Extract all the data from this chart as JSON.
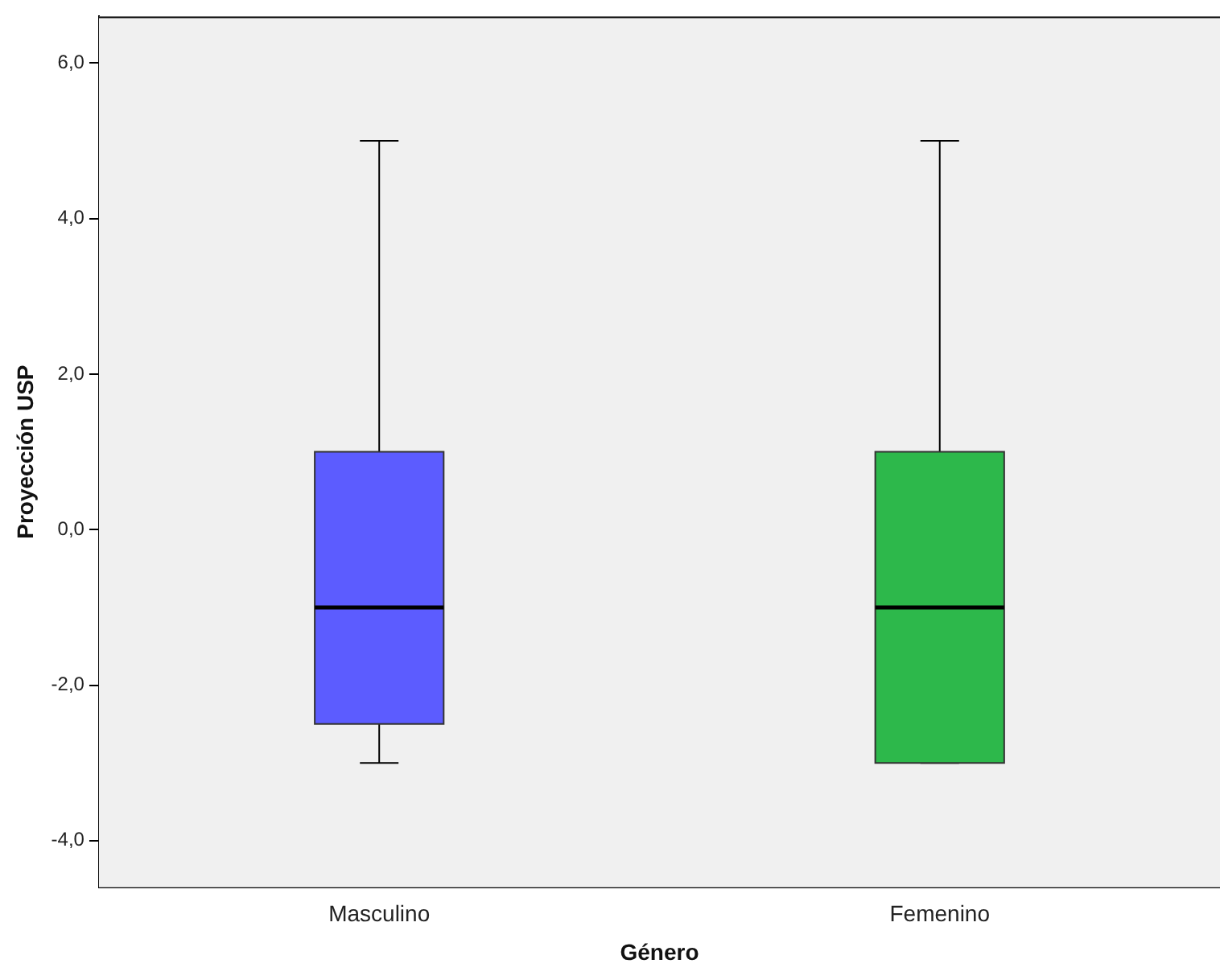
{
  "chart_data": {
    "type": "box",
    "xlabel": "Género",
    "ylabel": "Proyección USP",
    "categories": [
      "Masculino",
      "Femenino"
    ],
    "colors": [
      "#5c5cff",
      "#2db84b"
    ],
    "boxes": [
      {
        "low": -3,
        "q1": -2.5,
        "median": -1,
        "q3": 1,
        "high": 5
      },
      {
        "low": -3,
        "q1": -3,
        "median": -1,
        "q3": 1,
        "high": 5
      }
    ],
    "ylim": [
      -4.6,
      6.6
    ],
    "yticks": [
      {
        "value": -4,
        "label": "-4,0"
      },
      {
        "value": -2,
        "label": "-2,0"
      },
      {
        "value": 0,
        "label": "0,0"
      },
      {
        "value": 2,
        "label": "2,0"
      },
      {
        "value": 4,
        "label": "4,0"
      },
      {
        "value": 6,
        "label": "6,0"
      }
    ],
    "grid": false,
    "legend": false
  }
}
